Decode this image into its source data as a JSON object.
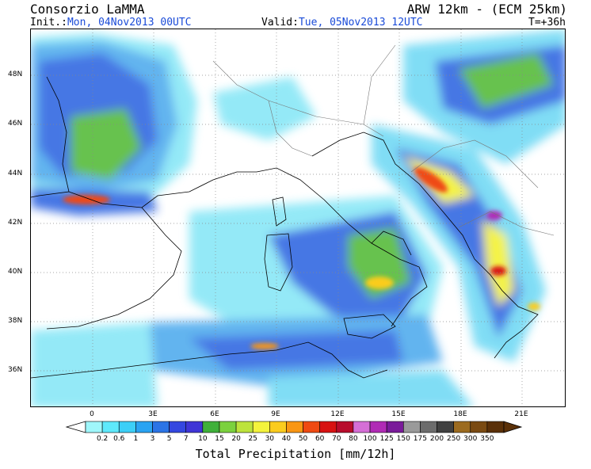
{
  "header": {
    "org": "Consorzio LaMMA",
    "model": "ARW 12km - (ECM 25km)",
    "init_label": "Init.:",
    "init_value": "Mon, 04Nov2013 00UTC",
    "valid_label": "Valid:",
    "valid_value": "Tue, 05Nov2013 12UTC",
    "forecast_step": "T=+36h"
  },
  "axes": {
    "lat_labels": [
      "48N",
      "46N",
      "44N",
      "42N",
      "40N",
      "38N",
      "36N"
    ],
    "lon_labels": [
      "0",
      "3E",
      "6E",
      "9E",
      "12E",
      "15E",
      "18E",
      "21E"
    ]
  },
  "colorbar": {
    "title": "Total Precipitation [mm/12h]",
    "labels": [
      "0.2",
      "0.6",
      "1",
      "3",
      "5",
      "7",
      "10",
      "15",
      "20",
      "25",
      "30",
      "40",
      "50",
      "60",
      "70",
      "80",
      "100",
      "125",
      "150",
      "175",
      "200",
      "250",
      "300",
      "350"
    ],
    "colors": [
      "#9ff7fb",
      "#5ee9fb",
      "#3ccff7",
      "#2aa3f2",
      "#2b74e6",
      "#3447e0",
      "#3f35d6",
      "#3fb03a",
      "#7bd13e",
      "#bde33c",
      "#f4f33c",
      "#fbcc1e",
      "#f99613",
      "#ef4a12",
      "#d81212",
      "#b80c2c",
      "#d56fd6",
      "#b02bb5",
      "#7a1b9a",
      "#9a9a9a",
      "#6c6c6c",
      "#404040",
      "#9c6b20",
      "#7a4a12",
      "#5a3008"
    ]
  }
}
